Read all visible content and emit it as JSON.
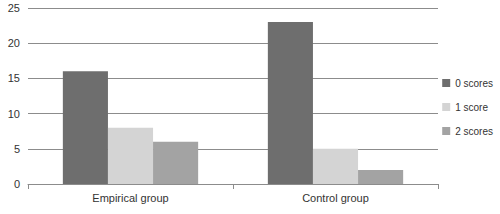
{
  "chart_data": {
    "type": "bar",
    "categories": [
      "Empirical group",
      "Control group"
    ],
    "series": [
      {
        "name": "0 scores",
        "color": "#6e6e6e",
        "values": [
          16,
          23
        ]
      },
      {
        "name": "1 score",
        "color": "#d4d4d4",
        "values": [
          8,
          5
        ]
      },
      {
        "name": "2 scores",
        "color": "#a3a3a3",
        "values": [
          6,
          2
        ]
      }
    ],
    "ylim": [
      0,
      25
    ],
    "yticks": [
      0,
      5,
      10,
      15,
      20,
      25
    ],
    "grid": true,
    "legend": "right"
  }
}
